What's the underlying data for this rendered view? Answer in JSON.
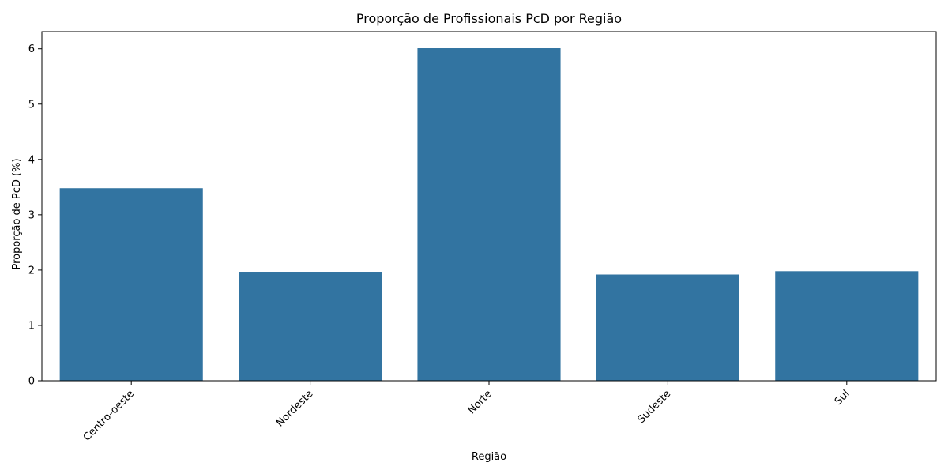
{
  "chart_data": {
    "type": "bar",
    "title": "Proporção de Profissionais PcD por Região",
    "xlabel": "Região",
    "ylabel": "Proporção de PcD (%)",
    "categories": [
      "Centro-oeste",
      "Nordeste",
      "Norte",
      "Sudeste",
      "Sul"
    ],
    "values": [
      3.48,
      1.97,
      6.01,
      1.92,
      1.98
    ],
    "ylim": [
      0,
      6.31
    ],
    "yticks": [
      0,
      1,
      2,
      3,
      4,
      5,
      6
    ],
    "bar_color": "#3274a1",
    "grid": false,
    "xtick_rotation": 45
  }
}
